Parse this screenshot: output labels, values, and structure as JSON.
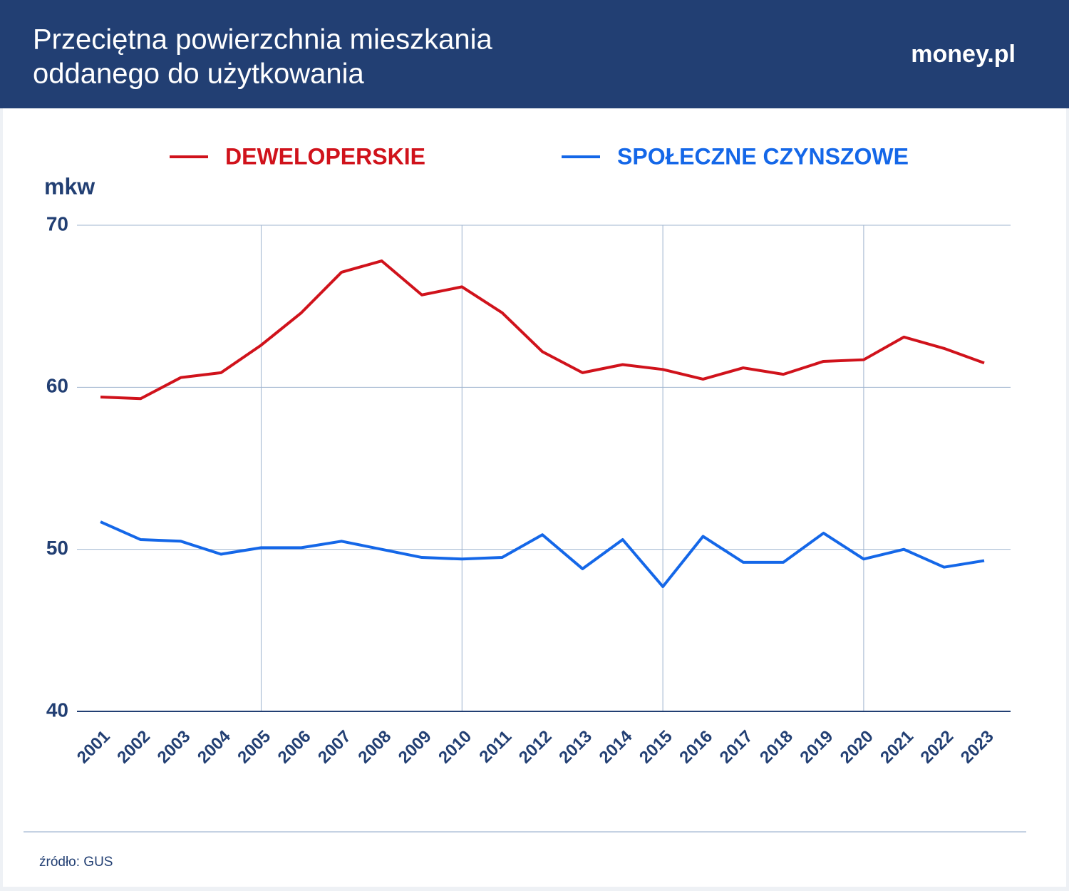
{
  "header": {
    "title_lines": [
      "Przeciętna powierzchnia mieszkania",
      "oddanego do użytkowania"
    ],
    "logo": "money.pl"
  },
  "chart_data": {
    "type": "line",
    "y_label": "mkw",
    "categories": [
      "2001",
      "2002",
      "2003",
      "2004",
      "2005",
      "2006",
      "2007",
      "2008",
      "2009",
      "2010",
      "2011",
      "2012",
      "2013",
      "2014",
      "2015",
      "2016",
      "2017",
      "2018",
      "2019",
      "2020",
      "2021",
      "2022",
      "2023"
    ],
    "series": [
      {
        "name": "DEWELOPERSKIE",
        "color": "#d0121b",
        "values": [
          59.4,
          59.3,
          60.6,
          60.9,
          62.6,
          64.6,
          67.1,
          67.8,
          65.7,
          66.2,
          64.6,
          62.2,
          60.9,
          61.4,
          61.1,
          60.5,
          61.2,
          60.8,
          61.6,
          61.7,
          63.1,
          62.4,
          61.5
        ]
      },
      {
        "name": "SPOŁECZNE CZYNSZOWE",
        "color": "#1467e8",
        "values": [
          51.7,
          50.6,
          50.5,
          49.7,
          50.1,
          50.1,
          50.5,
          50.0,
          49.5,
          49.4,
          49.5,
          50.9,
          48.8,
          50.6,
          47.7,
          50.8,
          49.2,
          49.2,
          51.0,
          49.4,
          50.0,
          48.9,
          49.3
        ]
      }
    ],
    "ylim": [
      40,
      70
    ],
    "yticks": [
      40,
      50,
      60,
      70
    ],
    "grid": true
  },
  "footer": {
    "source": "źródło: GUS"
  }
}
